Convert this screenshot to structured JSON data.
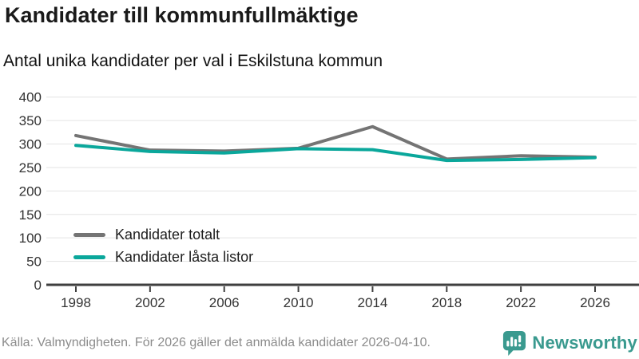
{
  "chart": {
    "title": "Kandidater till kommunfullmäktige",
    "subtitle": "Antal unika kandidater per val i Eskilstuna kommun"
  },
  "chart_data": {
    "type": "line",
    "x": [
      1998,
      2002,
      2006,
      2010,
      2014,
      2018,
      2022,
      2026
    ],
    "series": [
      {
        "name": "Kandidater totalt",
        "color": "#747474",
        "values": [
          318,
          287,
          285,
          291,
          337,
          268,
          275,
          272
        ]
      },
      {
        "name": "Kandidater låsta listor",
        "color": "#0aa79b",
        "values": [
          297,
          284,
          281,
          290,
          288,
          265,
          267,
          271
        ]
      }
    ],
    "title": "Kandidater till kommunfullmäktige",
    "subtitle": "Antal unika kandidater per val i Eskilstuna kommun",
    "xlabel": "",
    "ylabel": "",
    "ylim": [
      0,
      400
    ],
    "yticks": [
      0,
      50,
      100,
      150,
      200,
      250,
      300,
      350,
      400
    ],
    "grid": true,
    "legend_position": "inside-bottom-left"
  },
  "footer": {
    "source": "Källa: Valmyndigheten. För 2026 gäller det anmälda kandidater 2026-04-10."
  },
  "logo": {
    "text": "Newsworthy",
    "color": "#3a9a8f"
  },
  "colors": {
    "grid_line": "#e3e3e3",
    "axis_line": "#3f3f3f",
    "tick_label": "#333333"
  }
}
